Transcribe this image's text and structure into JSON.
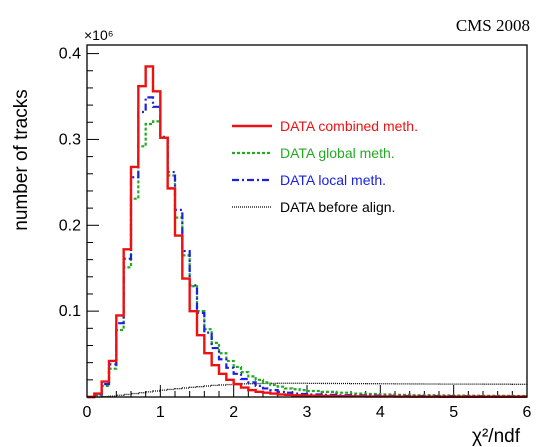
{
  "chart_data": {
    "type": "line",
    "annotation": "CMS 2008",
    "xlabel": "χ²/ndf",
    "ylabel": "number of tracks",
    "y_multiplier": "×10⁶",
    "xlim": [
      0,
      6
    ],
    "ylim": [
      0,
      0.41
    ],
    "grid": false,
    "legend_position": "top-right",
    "x_ticks": [
      0,
      1,
      2,
      3,
      4,
      5,
      6
    ],
    "y_ticks": [
      0.1,
      0.2,
      0.3,
      0.4
    ],
    "x_tick_labels": [
      "0",
      "1",
      "2",
      "3",
      "4",
      "5",
      "6"
    ],
    "y_tick_labels": [
      "0.1",
      "0.2",
      "0.3",
      "0.4"
    ],
    "bin_edges": [
      0,
      0.1,
      0.2,
      0.3,
      0.4,
      0.5,
      0.6,
      0.7,
      0.8,
      0.9,
      1.0,
      1.1,
      1.2,
      1.3,
      1.4,
      1.5,
      1.6,
      1.7,
      1.8,
      1.9,
      2.0,
      2.1,
      2.2,
      2.3,
      2.4,
      2.5,
      2.6,
      2.7,
      2.8,
      2.9,
      3.0,
      3.2,
      3.4,
      3.6,
      3.8,
      4.0,
      4.2,
      4.4,
      4.6,
      4.8,
      5.0,
      5.2,
      5.4,
      5.6,
      5.8,
      6.0
    ],
    "series": [
      {
        "name": "DATA combined meth.",
        "color": "#ee1111",
        "dash": "solid",
        "values": [
          0.0,
          0.004,
          0.018,
          0.042,
          0.095,
          0.172,
          0.268,
          0.362,
          0.385,
          0.356,
          0.302,
          0.243,
          0.188,
          0.138,
          0.1,
          0.072,
          0.051,
          0.037,
          0.027,
          0.02,
          0.015,
          0.011,
          0.008,
          0.006,
          0.005,
          0.004,
          0.003,
          0.0025,
          0.002,
          0.0018,
          0.0015,
          0.0012,
          0.001,
          0.0008,
          0.0007,
          0.0006,
          0.0005,
          0.0004,
          0.0004,
          0.0003,
          0.0003,
          0.0003,
          0.0003,
          0.0003,
          0.0003
        ]
      },
      {
        "name": "DATA global meth.",
        "color": "#22aa22",
        "dash": "dotted",
        "values": [
          0.0,
          0.002,
          0.013,
          0.033,
          0.078,
          0.151,
          0.231,
          0.292,
          0.318,
          0.321,
          0.302,
          0.258,
          0.209,
          0.165,
          0.129,
          0.1,
          0.079,
          0.063,
          0.051,
          0.042,
          0.035,
          0.029,
          0.024,
          0.02,
          0.017,
          0.014,
          0.012,
          0.01,
          0.009,
          0.008,
          0.007,
          0.006,
          0.005,
          0.004,
          0.0035,
          0.003,
          0.0025,
          0.002,
          0.002,
          0.0018,
          0.0016,
          0.0015,
          0.0014,
          0.0013,
          0.0012
        ]
      },
      {
        "name": "DATA local meth.",
        "color": "#1a22dd",
        "dash": "dashdot",
        "values": [
          0.0,
          0.003,
          0.015,
          0.038,
          0.086,
          0.161,
          0.256,
          0.332,
          0.349,
          0.338,
          0.303,
          0.262,
          0.218,
          0.17,
          0.13,
          0.098,
          0.075,
          0.057,
          0.044,
          0.034,
          0.027,
          0.021,
          0.017,
          0.013,
          0.01,
          0.008,
          0.006,
          0.005,
          0.004,
          0.0035,
          0.003,
          0.0025,
          0.002,
          0.0018,
          0.0016,
          0.0014,
          0.0012,
          0.0011,
          0.001,
          0.001,
          0.0009,
          0.0009,
          0.0008,
          0.0008,
          0.0008
        ]
      },
      {
        "name": "DATA before align.",
        "color": "#000000",
        "dash": "finedot",
        "values": [
          0.0,
          0.0,
          0.0005,
          0.001,
          0.002,
          0.003,
          0.004,
          0.005,
          0.006,
          0.007,
          0.008,
          0.0088,
          0.0097,
          0.0105,
          0.0113,
          0.012,
          0.0128,
          0.0135,
          0.014,
          0.0145,
          0.015,
          0.0153,
          0.0155,
          0.0157,
          0.0158,
          0.0159,
          0.016,
          0.016,
          0.016,
          0.016,
          0.0159,
          0.0158,
          0.0157,
          0.0156,
          0.0155,
          0.0154,
          0.0153,
          0.0152,
          0.0151,
          0.015,
          0.015,
          0.015,
          0.0149,
          0.0149,
          0.0148
        ]
      }
    ]
  }
}
